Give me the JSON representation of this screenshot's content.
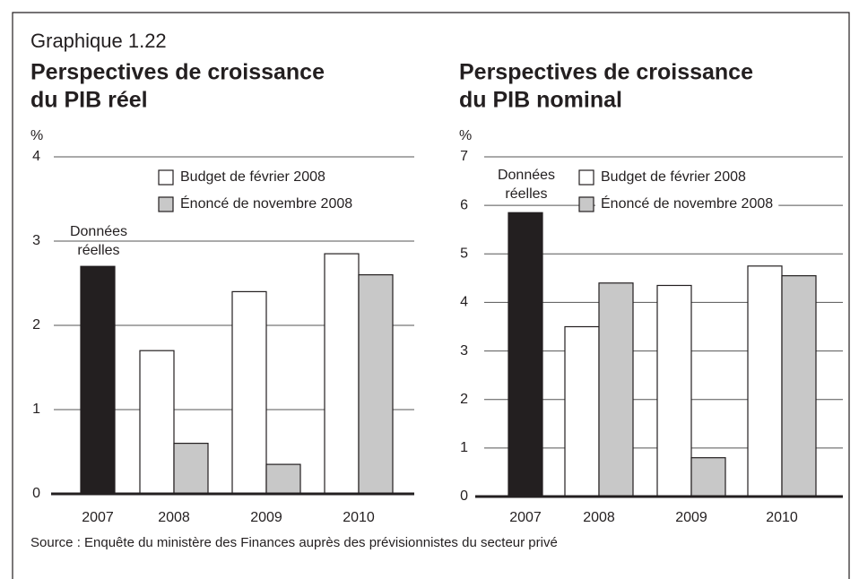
{
  "figure_label": "Graphique 1.22",
  "source": "Source : Enquête du ministère des Finances auprès des prévisionnistes du secteur privé",
  "chart_data": [
    {
      "type": "bar",
      "title": [
        "Perspectives de croissance",
        "du PIB réel"
      ],
      "y_label": "%",
      "categories": [
        "2007",
        "2008",
        "2009",
        "2010"
      ],
      "actual": {
        "label": [
          "Données",
          "réelles"
        ],
        "color": "#231f20",
        "values": [
          2.7,
          null,
          null,
          null
        ]
      },
      "series": [
        {
          "name": "Budget de février 2008",
          "color": "#ffffff",
          "values": [
            null,
            1.7,
            2.4,
            2.85
          ]
        },
        {
          "name": "Énoncé de novembre 2008",
          "color": "#c8c8c8",
          "values": [
            null,
            0.6,
            0.35,
            2.6
          ]
        }
      ],
      "ylim": [
        0,
        4
      ],
      "yticks": [
        0,
        1,
        2,
        3,
        4
      ],
      "grid": true
    },
    {
      "type": "bar",
      "title": [
        "Perspectives de croissance",
        "du PIB nominal"
      ],
      "y_label": "%",
      "categories": [
        "2007",
        "2008",
        "2009",
        "2010"
      ],
      "actual": {
        "label": [
          "Données",
          "réelles"
        ],
        "color": "#231f20",
        "values": [
          5.85,
          null,
          null,
          null
        ]
      },
      "series": [
        {
          "name": "Budget de février 2008",
          "color": "#ffffff",
          "values": [
            null,
            3.5,
            4.35,
            4.75
          ]
        },
        {
          "name": "Énoncé de novembre 2008",
          "color": "#c8c8c8",
          "values": [
            null,
            4.4,
            0.8,
            4.55
          ]
        }
      ],
      "ylim": [
        0,
        7
      ],
      "yticks": [
        0,
        1,
        2,
        3,
        4,
        5,
        6,
        7
      ],
      "grid": true
    }
  ]
}
